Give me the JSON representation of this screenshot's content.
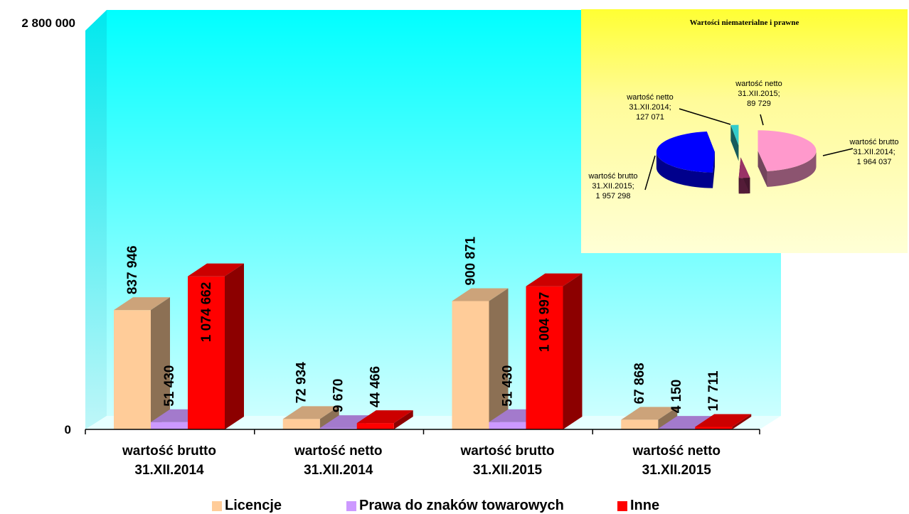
{
  "chart_data": [
    {
      "type": "bar",
      "categories": [
        "wartość brutto 31.XII.2014",
        "wartość netto 31.XII.2014",
        "wartość brutto 31.XII.2015",
        "wartość netto 31.XII.2015"
      ],
      "category_lines": [
        [
          "wartość brutto",
          "31.XII.2014"
        ],
        [
          "wartość netto",
          "31.XII.2014"
        ],
        [
          "wartość brutto",
          "31.XII.2015"
        ],
        [
          "wartość netto",
          "31.XII.2015"
        ]
      ],
      "series": [
        {
          "name": "Licencje",
          "values": [
            837946,
            72934,
            900871,
            67868
          ],
          "labels": [
            "837 946",
            "72 934",
            "900 871",
            "67 868"
          ],
          "color": "#ffcc99"
        },
        {
          "name": "Prawa do znaków towarowych",
          "values": [
            51430,
            9670,
            51430,
            4150
          ],
          "labels": [
            "51 430",
            "9 670",
            "51 430",
            "4 150"
          ],
          "color": "#cc99ff"
        },
        {
          "name": "Inne",
          "values": [
            1074662,
            44466,
            1004997,
            17711
          ],
          "labels": [
            "1 074 662",
            "44 466",
            "1 004 997",
            "17 711"
          ],
          "color": "#ff0000"
        }
      ],
      "ylim": [
        0,
        2800000
      ],
      "y_ticks": [
        "0",
        "2 800 000"
      ],
      "legend_position": "bottom",
      "wall_color": "#00ffff"
    },
    {
      "type": "pie",
      "title": "Wartości niematerialne i prawne",
      "slices": [
        {
          "label_lines": [
            "wartość brutto",
            "31.XII.2014;",
            "1 964 037"
          ],
          "value": 1964037,
          "color": "#ff99cc"
        },
        {
          "label_lines": [
            "wartość netto",
            "31.XII.2014;",
            "127 071"
          ],
          "value": 127071,
          "color": "#993366"
        },
        {
          "label_lines": [
            "wartość brutto",
            "31.XII.2015;",
            "1 957 298"
          ],
          "value": 1957298,
          "color": "#0000ff"
        },
        {
          "label_lines": [
            "wartość netto",
            "31.XII.2015;",
            "89 729"
          ],
          "value": 89729,
          "color": "#33cccc"
        }
      ],
      "background": "#ffff66"
    }
  ]
}
